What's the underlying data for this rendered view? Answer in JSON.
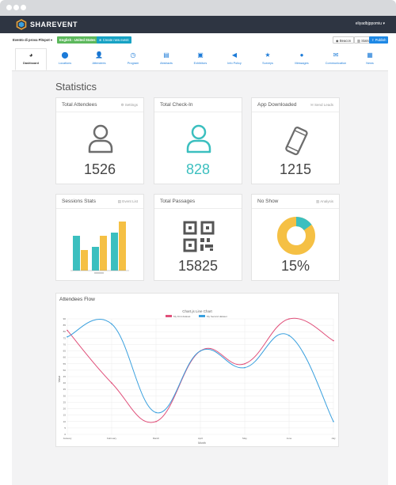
{
  "app": {
    "name": "SHAREVENT",
    "user": "eliyadbjppomiu"
  },
  "toolbar": {
    "event_select": "Evento di prova Pitspot",
    "language_select": "English - United States",
    "create_event": "Create new event",
    "beacon": "Beacon",
    "stats": "Stats",
    "publish": "Publish"
  },
  "tabs": [
    {
      "label": "Dashboard",
      "icon": "dashboard-icon",
      "active": true
    },
    {
      "label": "Locations",
      "icon": "map-pin-icon"
    },
    {
      "label": "Attendees",
      "icon": "person-icon"
    },
    {
      "label": "Program",
      "icon": "clock-icon"
    },
    {
      "label": "Abstracts",
      "icon": "document-icon"
    },
    {
      "label": "Exhibitors",
      "icon": "briefcase-icon"
    },
    {
      "label": "Info Policy",
      "icon": "megaphone-icon"
    },
    {
      "label": "Surveys",
      "icon": "star-icon"
    },
    {
      "label": "Messages",
      "icon": "chat-icon"
    },
    {
      "label": "Communication",
      "icon": "envelope-icon"
    },
    {
      "label": "News",
      "icon": "news-icon"
    }
  ],
  "page": {
    "title": "Statistics"
  },
  "cards": {
    "total_attendees": {
      "title": "Total Attendees",
      "action": "Settings",
      "value": "1526",
      "icon": "person-icon"
    },
    "total_checkin": {
      "title": "Total Check-In",
      "value": "828",
      "icon": "person-icon"
    },
    "app_downloaded": {
      "title": "App Downloaded",
      "action": "Send Leads",
      "value": "1215",
      "icon": "smartphone-icon"
    },
    "sessions_stats": {
      "title": "Sessions Stats",
      "action": "Event List",
      "icon": "bar-chart-icon"
    },
    "total_passages": {
      "title": "Total Passages",
      "value": "15825",
      "icon": "qr-code-icon"
    },
    "no_show": {
      "title": "No Show",
      "action": "Analysis",
      "value": "15%",
      "fraction": 0.15,
      "icon": "donut-chart-icon"
    }
  },
  "colors": {
    "header": "#2e3542",
    "teal": "#3bbfbf",
    "yellow": "#f5c044",
    "line_red": "#e0507a",
    "line_blue": "#3aa0de"
  },
  "chart_data": {
    "type": "line",
    "panel_title": "Attendees Flow",
    "title": "Chart.js Line Chart",
    "xlabel": "Month",
    "ylabel": "Value",
    "categories": [
      "January",
      "February",
      "March",
      "April",
      "May",
      "June",
      "July"
    ],
    "ylim": [
      0,
      90
    ],
    "yticks": [
      0,
      5,
      10,
      15,
      20,
      25,
      30,
      35,
      40,
      45,
      50,
      55,
      60,
      65,
      70,
      75,
      80,
      85,
      90
    ],
    "grid": true,
    "legend": "top",
    "series": [
      {
        "name": "My First dataset",
        "values": [
          81,
          40,
          10,
          65,
          55,
          90,
          73
        ],
        "color": "#e0507a"
      },
      {
        "name": "My Second dataset",
        "values": [
          76,
          86,
          17,
          65,
          52,
          77,
          10
        ],
        "color": "#3aa0de"
      }
    ]
  }
}
